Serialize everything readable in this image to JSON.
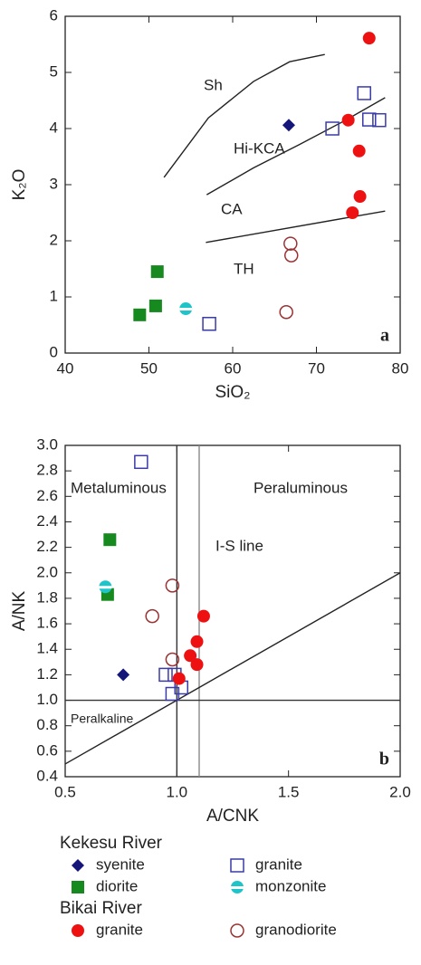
{
  "chart_data": [
    {
      "type": "scatter",
      "x_label": "SiO₂",
      "y_label": "K₂O",
      "panel_label": "a",
      "xlim": [
        40,
        80
      ],
      "xticks": [
        40,
        50,
        60,
        70,
        80
      ],
      "ylim": [
        0,
        6
      ],
      "yticks": [
        0,
        1,
        2,
        3,
        4,
        5,
        6
      ],
      "annotations": [
        "Sh",
        "Hi-KCA",
        "CA",
        "TH"
      ],
      "lines": [
        {
          "x": [
            51.8,
            57.1,
            62.5,
            66.8,
            71.0
          ],
          "y": [
            3.13,
            4.19,
            4.84,
            5.19,
            5.32
          ]
        },
        {
          "x": [
            56.9,
            62.5,
            67.9,
            73.5,
            78.2
          ],
          "y": [
            2.82,
            3.3,
            3.71,
            4.15,
            4.55
          ]
        },
        {
          "x": [
            56.8,
            78.2
          ],
          "y": [
            1.97,
            2.53
          ]
        }
      ],
      "series": [
        {
          "name": "syenite",
          "group": "Kekesu River",
          "marker": "diamond",
          "color": "#15157a",
          "x": [
            66.7
          ],
          "y": [
            4.06
          ]
        },
        {
          "name": "granite",
          "group": "Kekesu River",
          "marker": "open-square",
          "color": "#3a3aa8",
          "x": [
            71.9,
            75.7,
            76.3,
            77.5,
            57.2
          ],
          "y": [
            4.0,
            4.63,
            4.16,
            4.15,
            0.52
          ]
        },
        {
          "name": "diorite",
          "group": "Kekesu River",
          "marker": "square",
          "color": "#168a1e",
          "x": [
            51.0,
            50.8,
            48.9
          ],
          "y": [
            1.45,
            0.84,
            0.68
          ]
        },
        {
          "name": "monzonite",
          "group": "Kekesu River",
          "marker": "half-circle",
          "color": "#1ec4c8",
          "x": [
            54.4
          ],
          "y": [
            0.79
          ]
        },
        {
          "name": "granite",
          "group": "Bikai River",
          "marker": "circle",
          "color": "#ee1111",
          "x": [
            76.3,
            73.8,
            75.1,
            75.2,
            74.3
          ],
          "y": [
            5.61,
            4.15,
            3.6,
            2.79,
            2.5
          ]
        },
        {
          "name": "granodiorite",
          "group": "Bikai River",
          "marker": "open-circle",
          "color": "#993333",
          "x": [
            66.9,
            67.0,
            66.4
          ],
          "y": [
            1.95,
            1.74,
            0.73
          ]
        }
      ]
    },
    {
      "type": "scatter",
      "x_label": "A/CNK",
      "y_label": "A/NK",
      "panel_label": "b",
      "xlim": [
        0.5,
        2.0
      ],
      "xticks": [
        0.5,
        {
          "value": 1,
          "label": "1.0"
        },
        1.5,
        {
          "value": 2,
          "label": "2.0"
        }
      ],
      "ylim": [
        0.4,
        3.0
      ],
      "yticks": [
        0.4,
        0.6,
        0.8,
        {
          "value": 1,
          "label": "1.0"
        },
        1.2,
        1.4,
        1.6,
        1.8,
        {
          "value": 2,
          "label": "2.0"
        },
        2.2,
        2.4,
        2.6,
        2.8,
        {
          "value": 3,
          "label": "3.0"
        }
      ],
      "annotations": [
        "Metaluminous",
        "Peraluminous",
        "I-S line",
        "Peralkaline"
      ],
      "lines": [
        {
          "x": [
            1.0,
            1.0
          ],
          "y": [
            0.4,
            3.0
          ]
        },
        {
          "x": [
            1.1,
            1.1
          ],
          "y": [
            0.4,
            3.0
          ]
        },
        {
          "x": [
            0.5,
            2.0
          ],
          "y": [
            1.0,
            1.0
          ]
        },
        {
          "x": [
            0.5,
            2.0
          ],
          "y": [
            0.5,
            2.0
          ]
        }
      ],
      "series": [
        {
          "name": "syenite",
          "group": "Kekesu River",
          "marker": "diamond",
          "color": "#15157a",
          "x": [
            0.76
          ],
          "y": [
            1.2
          ]
        },
        {
          "name": "granite",
          "group": "Kekesu River",
          "marker": "open-square",
          "color": "#3a3aa8",
          "x": [
            0.84,
            0.95,
            0.99,
            0.98,
            1.02
          ],
          "y": [
            2.87,
            1.2,
            1.2,
            1.05,
            1.1
          ]
        },
        {
          "name": "diorite",
          "group": "Kekesu River",
          "marker": "square",
          "color": "#168a1e",
          "x": [
            0.7,
            0.69
          ],
          "y": [
            2.26,
            1.83
          ]
        },
        {
          "name": "monzonite",
          "group": "Kekesu River",
          "marker": "half-circle",
          "color": "#1ec4c8",
          "x": [
            0.68
          ],
          "y": [
            1.89
          ]
        },
        {
          "name": "granite",
          "group": "Bikai River",
          "marker": "circle",
          "color": "#ee1111",
          "x": [
            1.12,
            1.09,
            1.09,
            1.06,
            1.01
          ],
          "y": [
            1.66,
            1.46,
            1.28,
            1.35,
            1.17
          ]
        },
        {
          "name": "granodiorite",
          "group": "Bikai River",
          "marker": "open-circle",
          "color": "#993333",
          "x": [
            0.98,
            0.89,
            0.98
          ],
          "y": [
            1.9,
            1.66,
            1.32
          ]
        }
      ]
    }
  ],
  "legend_groups": [
    "Kekesu River",
    "Bikai River"
  ]
}
